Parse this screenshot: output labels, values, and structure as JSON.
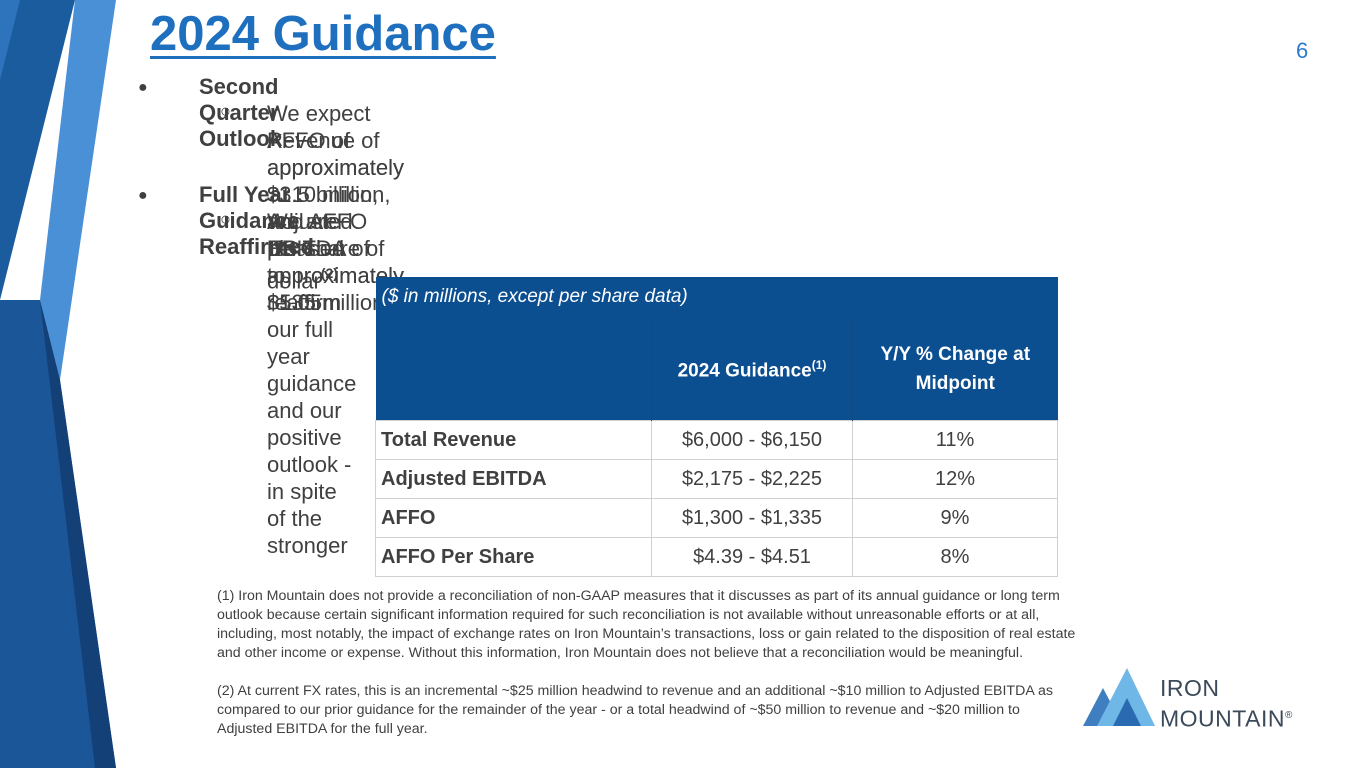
{
  "header": {
    "title": "2024 Guidance",
    "page_number": "6"
  },
  "outline": [
    {
      "heading": "Second Quarter Outlook",
      "sub_lines": [
        "We expect Revenue of approximately $1.5 billion, Adjusted EBITDA of approximately $535 million,",
        "AFFO of approximately $310 million, and AFFO per share of approximately $1.05"
      ]
    },
    {
      "heading": "Full Year Guidance Reaffirmed",
      "sub_lines": [
        "We are pleased to reaffirm our full year guidance and our positive outlook - in spite of the stronger",
        "US dollar"
      ],
      "sub_sup": "(2)"
    }
  ],
  "table": {
    "note": "($ in millions, except per share data)",
    "col_guidance": "2024 Guidance",
    "col_guidance_sup": "(1)",
    "col_change_line1": "Y/Y % Change at",
    "col_change_line2": "Midpoint",
    "rows": [
      {
        "label": "Total Revenue",
        "guidance": "$6,000 - $6,150",
        "change": "11%"
      },
      {
        "label": "Adjusted EBITDA",
        "guidance": "$2,175 - $2,225",
        "change": "12%"
      },
      {
        "label": "AFFO",
        "guidance": "$1,300 - $1,335",
        "change": "9%"
      },
      {
        "label": "AFFO Per Share",
        "guidance": "$4.39 - $4.51",
        "change": "8%"
      }
    ]
  },
  "footnotes": {
    "note1": "(1) Iron Mountain does not provide a reconciliation of non-GAAP measures that it discusses as part of its annual guidance or long term outlook because certain significant information required for such reconciliation is not available without unreasonable efforts or at all, including, most notably, the impact of exchange rates on Iron Mountain’s transactions, loss or gain related to the disposition of real estate and other income or expense. Without this information, Iron Mountain does not believe that a reconciliation would be meaningful.",
    "note2": "(2) At current FX rates, this is an incremental ~$25 million headwind to revenue and an additional ~$10 million to Adjusted EBITDA as compared to our prior guidance for the remainder of the year - or a total headwind of ~$50 million to revenue and ~$20 million to Adjusted EBITDA for the full year."
  },
  "logo": {
    "line1": "IRON",
    "line2": "MOUNTAIN",
    "registered": "®"
  },
  "colors": {
    "title_blue": "#1f6fbf",
    "table_header": "#0c4f91",
    "deco_light": "#4f93d6",
    "deco_mid": "#1d5fa3",
    "deco_dark": "#123f75"
  }
}
